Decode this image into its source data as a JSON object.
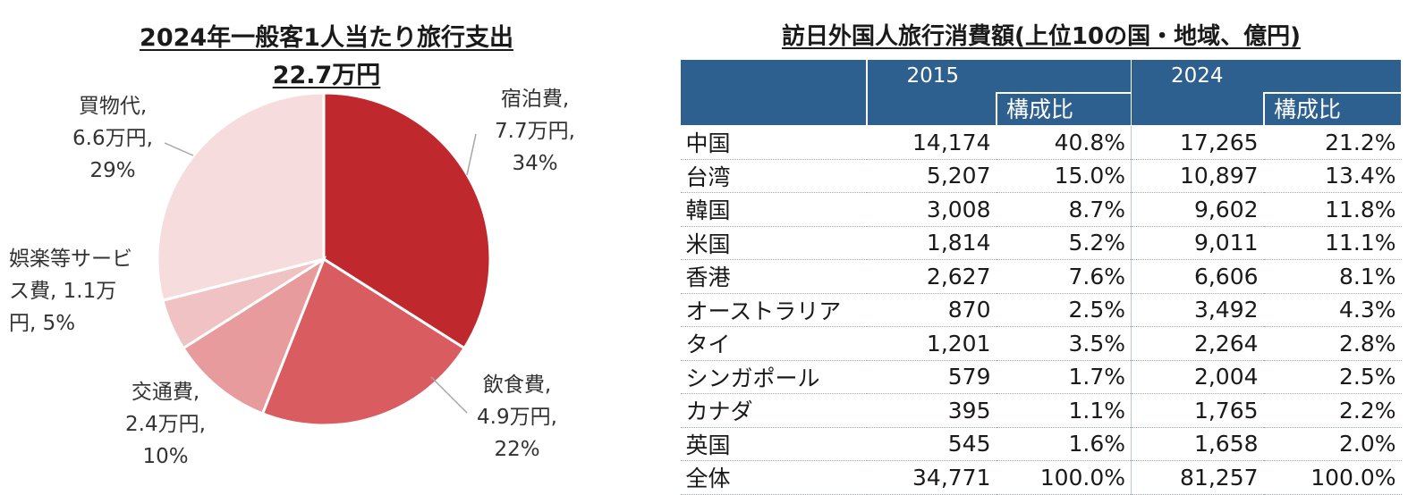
{
  "pie": {
    "title_line1": "2024年一般客1人当たり旅行支出",
    "title_line2": "22.7万円"
  },
  "chart_data": [
    {
      "type": "pie",
      "title": "2024年一般客1人当たり旅行支出 22.7万円",
      "slices": [
        {
          "name": "宿泊費",
          "amount": "7.7万円",
          "value": 34,
          "label": "34%",
          "color": "#bf282d",
          "label_lines": [
            "宿泊費,",
            "7.7万円,",
            "34%"
          ]
        },
        {
          "name": "飲食費",
          "amount": "4.9万円",
          "value": 22,
          "label": "22%",
          "color": "#d95c60",
          "label_lines": [
            "飲食費,",
            "4.9万円,",
            "22%"
          ]
        },
        {
          "name": "交通費",
          "amount": "2.4万円",
          "value": 10,
          "label": "10%",
          "color": "#e89b9d",
          "label_lines": [
            "交通費,",
            "2.4万円,",
            "10%"
          ]
        },
        {
          "name": "娯楽等サービス費",
          "amount": "1.1万円",
          "value": 5,
          "label": "5%",
          "color": "#f0c2c3",
          "label_lines": [
            "娯楽等サービ",
            "ス費, 1.1万",
            "円, 5%"
          ]
        },
        {
          "name": "買物代",
          "amount": "6.6万円",
          "value": 29,
          "label": "29%",
          "color": "#f7dcdd",
          "label_lines": [
            "買物代,",
            "6.6万円,",
            "29%"
          ]
        }
      ]
    },
    {
      "type": "table",
      "title": "訪日外国人旅行消費額(上位10の国・地域、億円)",
      "header": {
        "year1": "2015",
        "year2": "2024",
        "ratio": "構成比"
      },
      "rows": [
        {
          "name": "中国",
          "v2015": "14,174",
          "r2015": "40.8%",
          "v2024": "17,265",
          "r2024": "21.2%"
        },
        {
          "name": "台湾",
          "v2015": "5,207",
          "r2015": "15.0%",
          "v2024": "10,897",
          "r2024": "13.4%"
        },
        {
          "name": "韓国",
          "v2015": "3,008",
          "r2015": "8.7%",
          "v2024": "9,602",
          "r2024": "11.8%"
        },
        {
          "name": "米国",
          "v2015": "1,814",
          "r2015": "5.2%",
          "v2024": "9,011",
          "r2024": "11.1%"
        },
        {
          "name": "香港",
          "v2015": "2,627",
          "r2015": "7.6%",
          "v2024": "6,606",
          "r2024": "8.1%"
        },
        {
          "name": "オーストラリア",
          "v2015": "870",
          "r2015": "2.5%",
          "v2024": "3,492",
          "r2024": "4.3%"
        },
        {
          "name": "タイ",
          "v2015": "1,201",
          "r2015": "3.5%",
          "v2024": "2,264",
          "r2024": "2.8%"
        },
        {
          "name": "シンガポール",
          "v2015": "579",
          "r2015": "1.7%",
          "v2024": "2,004",
          "r2024": "2.5%"
        },
        {
          "name": "カナダ",
          "v2015": "395",
          "r2015": "1.1%",
          "v2024": "1,765",
          "r2024": "2.2%"
        },
        {
          "name": "英国",
          "v2015": "545",
          "r2015": "1.6%",
          "v2024": "1,658",
          "r2024": "2.0%"
        },
        {
          "name": "全体",
          "v2015": "34,771",
          "r2015": "100.0%",
          "v2024": "81,257",
          "r2024": "100.0%"
        }
      ]
    }
  ]
}
